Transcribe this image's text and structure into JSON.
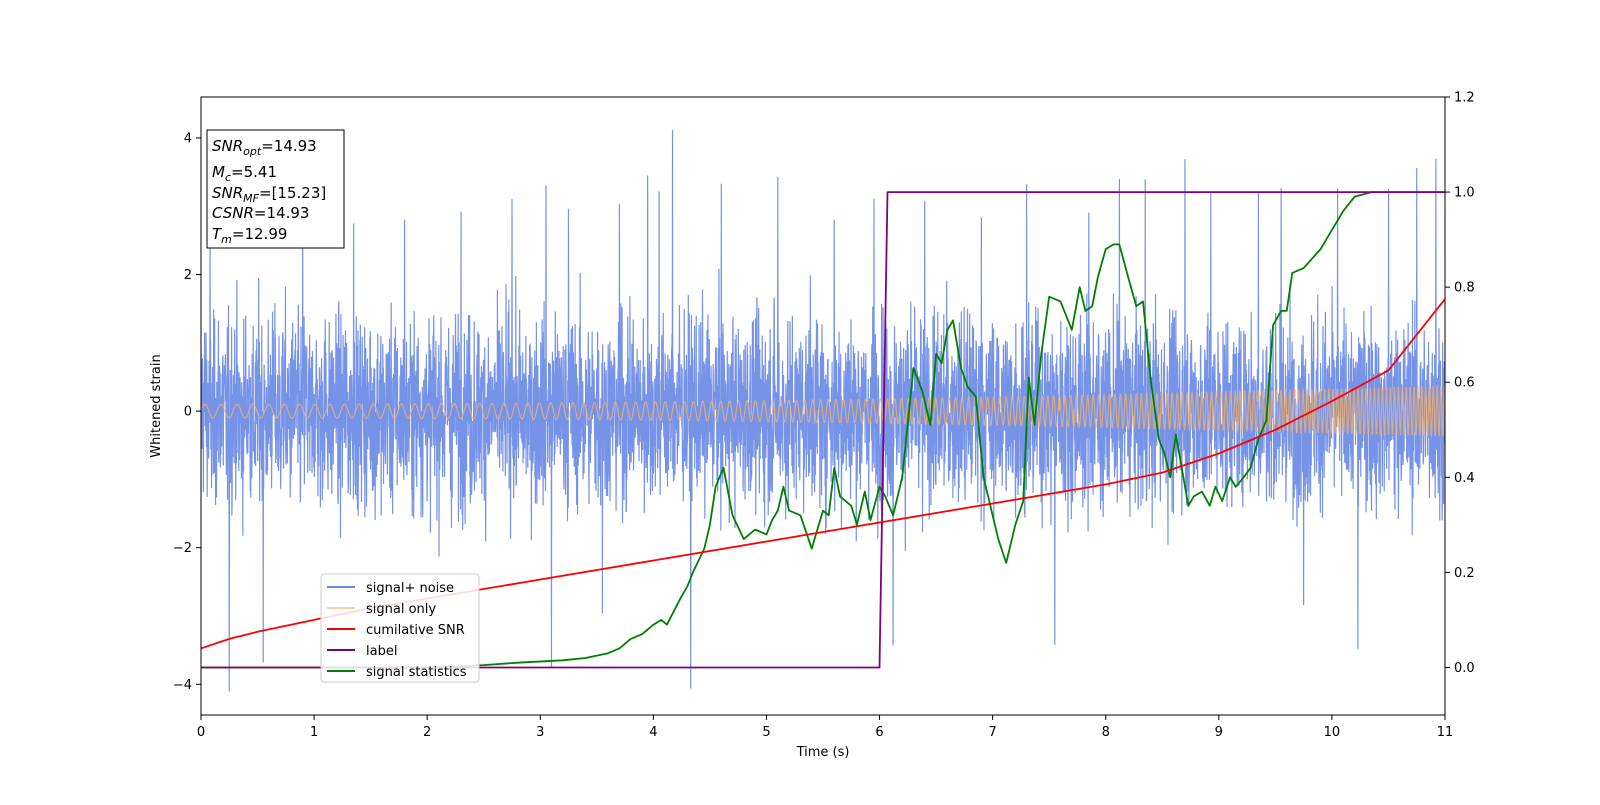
{
  "chart_data": {
    "type": "line",
    "xlabel": "Time (s)",
    "ylabel": "Whitened strain",
    "xlim": [
      0,
      11
    ],
    "ylim": [
      -4.45,
      4.6
    ],
    "y2lim": [
      -0.1,
      1.2
    ],
    "xticks": [
      "0",
      "1",
      "2",
      "3",
      "4",
      "5",
      "6",
      "7",
      "8",
      "9",
      "10",
      "11"
    ],
    "yticks": [
      "−4",
      "−2",
      "0",
      "2",
      "4"
    ],
    "y2ticks": [
      "0.0",
      "0.2",
      "0.4",
      "0.6",
      "0.8",
      "1.0",
      "1.2"
    ],
    "grid": false,
    "legend": {
      "location": "lower-left",
      "entries": [
        "signal+ noise",
        "signal only",
        "cumilative SNR",
        "label",
        "signal statistics"
      ]
    },
    "annotation": {
      "lines": [
        {
          "sym": "SNR",
          "sub": "opt",
          "value": "=14.93"
        },
        {
          "sym": "M",
          "sub": "c",
          "value": "=5.41"
        },
        {
          "sym": "SNR",
          "sub": "MF",
          "value": "=[15.23]"
        },
        {
          "sym": "CSNR",
          "sub": "",
          "value": "=14.93"
        },
        {
          "sym": "T",
          "sub": "m",
          "value": "=12.99"
        }
      ]
    },
    "series": [
      {
        "name": "signal+ noise",
        "axis": "left",
        "color": "#6a8ae6",
        "note_style": "dense noise",
        "envelope_lower": -2.4,
        "envelope_upper": 2.4,
        "spikes": [
          [
            0.08,
            2.55
          ],
          [
            0.25,
            -4.0
          ],
          [
            0.55,
            -3.7
          ],
          [
            0.9,
            2.85
          ],
          [
            1.35,
            2.6
          ],
          [
            1.8,
            2.7
          ],
          [
            2.3,
            2.8
          ],
          [
            2.75,
            3.05
          ],
          [
            3.05,
            3.45
          ],
          [
            3.1,
            -3.6
          ],
          [
            3.25,
            3.1
          ],
          [
            3.55,
            -3.1
          ],
          [
            3.7,
            3.05
          ],
          [
            3.95,
            3.3
          ],
          [
            4.05,
            3.35
          ],
          [
            4.17,
            4.15
          ],
          [
            4.33,
            -4.05
          ],
          [
            4.6,
            3.3
          ],
          [
            5.1,
            3.35
          ],
          [
            5.6,
            2.95
          ],
          [
            5.95,
            3.25
          ],
          [
            6.12,
            -3.55
          ],
          [
            6.4,
            3.0
          ],
          [
            6.9,
            2.95
          ],
          [
            7.3,
            3.35
          ],
          [
            7.55,
            -3.45
          ],
          [
            7.85,
            3.05
          ],
          [
            8.12,
            3.55
          ],
          [
            8.35,
            3.25
          ],
          [
            8.7,
            3.55
          ],
          [
            8.93,
            3.05
          ],
          [
            9.35,
            3.05
          ],
          [
            9.55,
            3.35
          ],
          [
            9.75,
            -2.85
          ],
          [
            10.05,
            3.3
          ],
          [
            10.23,
            -3.55
          ],
          [
            10.5,
            3.2
          ],
          [
            10.75,
            3.65
          ],
          [
            10.92,
            3.85
          ]
        ]
      },
      {
        "name": "signal only",
        "axis": "left",
        "color": "#f7b168",
        "amplitude_start": 0.1,
        "amplitude_end": 0.37,
        "frequency_start": 7,
        "frequency_end": 30
      },
      {
        "name": "cumilative SNR",
        "axis": "right",
        "color": "#ff0000",
        "x": [
          0,
          0.25,
          0.5,
          1,
          1.5,
          2,
          3,
          4,
          5,
          6,
          7,
          8,
          8.5,
          9,
          9.5,
          10,
          10.5,
          11
        ],
        "y": [
          0.04,
          0.06,
          0.075,
          0.1,
          0.125,
          0.145,
          0.185,
          0.225,
          0.265,
          0.305,
          0.345,
          0.385,
          0.41,
          0.45,
          0.5,
          0.56,
          0.625,
          0.775
        ]
      },
      {
        "name": "label",
        "axis": "right",
        "color": "#800080",
        "x": [
          0,
          6.0,
          6.07,
          11
        ],
        "y": [
          0.0,
          0.0,
          1.0,
          1.0
        ]
      },
      {
        "name": "signal statistics",
        "axis": "right",
        "color": "#008000",
        "x": [
          0,
          1,
          2,
          2.5,
          2.8,
          3.2,
          3.4,
          3.6,
          3.7,
          3.8,
          3.9,
          4.0,
          4.07,
          4.12,
          4.25,
          4.3,
          4.35,
          4.45,
          4.5,
          4.55,
          4.62,
          4.7,
          4.8,
          4.9,
          5.0,
          5.05,
          5.1,
          5.15,
          5.2,
          5.3,
          5.4,
          5.5,
          5.55,
          5.6,
          5.65,
          5.7,
          5.75,
          5.8,
          5.87,
          5.92,
          6.0,
          6.05,
          6.12,
          6.2,
          6.3,
          6.38,
          6.45,
          6.5,
          6.55,
          6.6,
          6.65,
          6.72,
          6.78,
          6.85,
          6.92,
          7.0,
          7.05,
          7.12,
          7.2,
          7.27,
          7.32,
          7.37,
          7.43,
          7.5,
          7.6,
          7.7,
          7.77,
          7.82,
          7.88,
          7.93,
          8.0,
          8.07,
          8.12,
          8.2,
          8.27,
          8.33,
          8.4,
          8.47,
          8.52,
          8.57,
          8.62,
          8.68,
          8.73,
          8.78,
          8.85,
          8.92,
          8.97,
          9.03,
          9.1,
          9.15,
          9.22,
          9.28,
          9.35,
          9.42,
          9.48,
          9.55,
          9.6,
          9.65,
          9.75,
          9.9,
          10.0,
          10.1,
          10.2,
          10.35,
          10.5,
          11
        ],
        "y": [
          0.0,
          0.0,
          0.0,
          0.005,
          0.01,
          0.015,
          0.02,
          0.03,
          0.04,
          0.06,
          0.07,
          0.09,
          0.1,
          0.09,
          0.15,
          0.17,
          0.2,
          0.25,
          0.3,
          0.38,
          0.42,
          0.32,
          0.27,
          0.29,
          0.28,
          0.31,
          0.33,
          0.38,
          0.33,
          0.32,
          0.25,
          0.33,
          0.32,
          0.42,
          0.36,
          0.35,
          0.34,
          0.3,
          0.37,
          0.31,
          0.38,
          0.36,
          0.32,
          0.4,
          0.63,
          0.58,
          0.51,
          0.66,
          0.64,
          0.71,
          0.73,
          0.63,
          0.59,
          0.57,
          0.4,
          0.32,
          0.27,
          0.22,
          0.3,
          0.35,
          0.61,
          0.51,
          0.66,
          0.78,
          0.77,
          0.71,
          0.8,
          0.75,
          0.76,
          0.82,
          0.88,
          0.89,
          0.89,
          0.82,
          0.76,
          0.77,
          0.6,
          0.48,
          0.45,
          0.4,
          0.49,
          0.41,
          0.34,
          0.36,
          0.37,
          0.34,
          0.38,
          0.35,
          0.4,
          0.38,
          0.4,
          0.42,
          0.48,
          0.52,
          0.72,
          0.75,
          0.75,
          0.83,
          0.84,
          0.88,
          0.92,
          0.96,
          0.99,
          1.0,
          1.0,
          1.0
        ]
      }
    ]
  }
}
